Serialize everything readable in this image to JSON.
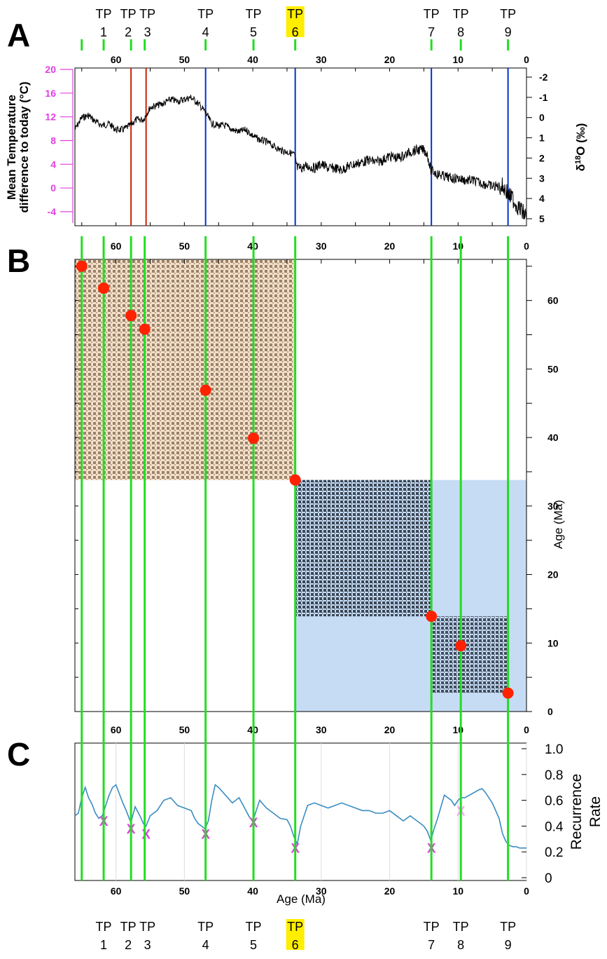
{
  "panels": {
    "a": "A",
    "b": "B",
    "c": "C"
  },
  "tipping_points": [
    {
      "tp": "TP",
      "num": "1",
      "age": 61.8,
      "highlight": false
    },
    {
      "tp": "TP",
      "num": "2",
      "age": 57.8,
      "highlight": false
    },
    {
      "tp": "TP",
      "num": "3",
      "age": 55.8,
      "highlight": false
    },
    {
      "tp": "TP",
      "num": "4",
      "age": 46.9,
      "highlight": false
    },
    {
      "tp": "TP",
      "num": "5",
      "age": 39.9,
      "highlight": false
    },
    {
      "tp": "TP",
      "num": "6",
      "age": 33.8,
      "highlight": true
    },
    {
      "tp": "TP",
      "num": "7",
      "age": 13.9,
      "highlight": false
    },
    {
      "tp": "TP",
      "num": "8",
      "age": 9.6,
      "highlight": false
    },
    {
      "tp": "TP",
      "num": "9",
      "age": 2.7,
      "highlight": false
    }
  ],
  "extra_green_line_age": 65,
  "colors": {
    "green": "#22dd22",
    "red_line": "#cc2200",
    "blue_line": "#0033cc",
    "magenta": "#e040e0",
    "highlight": "#ffee00",
    "orange_block": "#f6dfc5",
    "blue_block": "#c6dcf4",
    "dot": "#ff2200",
    "rr_line": "#3a8cc2"
  },
  "chart_data": [
    {
      "panel": "A",
      "type": "line",
      "x_ticks": [
        "60",
        "50",
        "40",
        "30",
        "20",
        "10",
        "0"
      ],
      "xlim": [
        66,
        0
      ],
      "left_axis": {
        "label_line1": "Mean Temperature",
        "label_line2": "difference to today (°C)",
        "ticks": [
          "20",
          "16",
          "12",
          "8",
          "4",
          "0",
          "-4"
        ],
        "range": [
          20,
          -6
        ]
      },
      "right_axis": {
        "label_base": "δ",
        "label_sup": "18",
        "label_rest": "O (‰)",
        "ticks": [
          "-2",
          "-1",
          "0",
          "1",
          "2",
          "3",
          "4",
          "5"
        ],
        "range": [
          -2.6,
          5.3
        ],
        "reversed": true
      },
      "red_lines_age": [
        57.8,
        55.6
      ],
      "blue_lines_age": [
        46.9,
        33.8,
        13.9,
        2.7
      ],
      "d18O_series": {
        "x": [
          66,
          65,
          64,
          63,
          62,
          61,
          60,
          59,
          58,
          57,
          56,
          55,
          54,
          53,
          52,
          51,
          50,
          49,
          48,
          47,
          46,
          45,
          44,
          43,
          42,
          41,
          40,
          39,
          38,
          37,
          36,
          35,
          34,
          33.5,
          33,
          32,
          31,
          30,
          29,
          28,
          27,
          26,
          25,
          24,
          23,
          22,
          21,
          20,
          19,
          18,
          17,
          16,
          15,
          14.5,
          14,
          13.5,
          13,
          12,
          11,
          10,
          9,
          8,
          7,
          6,
          5,
          4,
          3.5,
          3,
          2.5,
          2,
          1.5,
          1,
          0.5,
          0
        ],
        "y": [
          0.6,
          0.0,
          -0.1,
          0.2,
          0.4,
          0.3,
          0.6,
          0.6,
          0.4,
          0.1,
          0.1,
          -0.5,
          -0.6,
          -0.7,
          -0.9,
          -0.8,
          -0.9,
          -1.0,
          -0.7,
          -0.3,
          0.3,
          0.4,
          0.4,
          0.6,
          0.7,
          0.6,
          0.9,
          1.1,
          1.2,
          1.4,
          1.6,
          1.7,
          1.8,
          2.5,
          2.5,
          2.4,
          2.5,
          2.3,
          2.5,
          2.5,
          2.6,
          2.4,
          2.3,
          2.2,
          2.1,
          2.2,
          2.1,
          1.9,
          2.0,
          1.9,
          1.7,
          1.6,
          1.6,
          1.8,
          2.6,
          2.7,
          2.8,
          2.9,
          3.0,
          3.0,
          3.1,
          3.1,
          3.2,
          3.3,
          3.4,
          3.4,
          3.4,
          3.6,
          3.9,
          4.0,
          4.3,
          4.5,
          4.7,
          4.9
        ]
      }
    },
    {
      "panel": "B",
      "type": "heatmap",
      "x_ticks": [
        "60",
        "50",
        "40",
        "30",
        "20",
        "10",
        "0"
      ],
      "y_ticks": [
        "60",
        "50",
        "40",
        "30",
        "20",
        "10",
        "0"
      ],
      "ylabel": "Age  (Ma)",
      "extent": [
        66,
        0
      ],
      "blocks": [
        {
          "from": 66,
          "to": 33.8,
          "regime": "warm"
        },
        {
          "from": 33.8,
          "to": 0,
          "regime": "cold"
        }
      ],
      "dots_age": [
        65,
        61.8,
        57.8,
        55.8,
        46.9,
        39.9,
        33.8,
        13.9,
        9.6,
        2.7
      ]
    },
    {
      "panel": "C",
      "type": "line",
      "x_ticks": [
        "60",
        "50",
        "40",
        "30",
        "20",
        "10",
        "0"
      ],
      "xlabel": "Age  (Ma)",
      "ylabel_line1": "Recurrence",
      "ylabel_line2": "Rate",
      "y_ticks": [
        "1.0",
        "0.8",
        "0.6",
        "0.4",
        "0.2",
        "0"
      ],
      "ylim": [
        0,
        1.0
      ],
      "xlim": [
        66,
        0
      ],
      "series": {
        "x": [
          66,
          65.5,
          65,
          64.5,
          64,
          63.5,
          63,
          62.5,
          62,
          61.5,
          61,
          60.5,
          60,
          59.5,
          59,
          58.5,
          58,
          57.8,
          57.2,
          56.5,
          56,
          55.6,
          55,
          54,
          53,
          52,
          51,
          50,
          49,
          48.5,
          48,
          47.5,
          47,
          46.5,
          46,
          45.5,
          45,
          44,
          43,
          42,
          41,
          40.5,
          40,
          39.5,
          39,
          38,
          37,
          36,
          35,
          34.5,
          34,
          33.5,
          33,
          32,
          31,
          30,
          29,
          28,
          27,
          26,
          25,
          24,
          23,
          22,
          21,
          20,
          19,
          18,
          17,
          16,
          15,
          14.5,
          14,
          13.5,
          13,
          12,
          11,
          10.5,
          10,
          9.6,
          9,
          8,
          7,
          6.5,
          6,
          5,
          4,
          3.5,
          3,
          2.5,
          2,
          1.5,
          1,
          0.5,
          0
        ],
        "y": [
          0.48,
          0.5,
          0.62,
          0.7,
          0.62,
          0.57,
          0.5,
          0.46,
          0.48,
          0.56,
          0.64,
          0.7,
          0.72,
          0.65,
          0.58,
          0.52,
          0.45,
          0.43,
          0.55,
          0.48,
          0.42,
          0.4,
          0.48,
          0.52,
          0.6,
          0.62,
          0.56,
          0.54,
          0.52,
          0.46,
          0.42,
          0.4,
          0.38,
          0.44,
          0.6,
          0.72,
          0.7,
          0.64,
          0.58,
          0.62,
          0.52,
          0.47,
          0.44,
          0.52,
          0.6,
          0.54,
          0.5,
          0.46,
          0.45,
          0.4,
          0.32,
          0.26,
          0.4,
          0.56,
          0.58,
          0.56,
          0.54,
          0.56,
          0.58,
          0.56,
          0.54,
          0.52,
          0.52,
          0.5,
          0.5,
          0.52,
          0.48,
          0.44,
          0.48,
          0.44,
          0.4,
          0.36,
          0.29,
          0.38,
          0.46,
          0.64,
          0.6,
          0.56,
          0.6,
          0.62,
          0.62,
          0.65,
          0.68,
          0.69,
          0.66,
          0.58,
          0.46,
          0.34,
          0.28,
          0.25,
          0.24,
          0.24,
          0.23,
          0.23,
          0.23
        ]
      },
      "x_markers": [
        {
          "label": "X",
          "age": 61.8,
          "rr": 0.44,
          "faded": false
        },
        {
          "label": "X",
          "age": 57.8,
          "rr": 0.38,
          "faded": false
        },
        {
          "label": "X",
          "age": 55.6,
          "rr": 0.34,
          "faded": false
        },
        {
          "label": "X",
          "age": 46.9,
          "rr": 0.34,
          "faded": false
        },
        {
          "label": "X",
          "age": 39.9,
          "rr": 0.43,
          "faded": false
        },
        {
          "label": "X",
          "age": 33.8,
          "rr": 0.23,
          "faded": false
        },
        {
          "label": "X",
          "age": 13.9,
          "rr": 0.23,
          "faded": false
        },
        {
          "label": "X",
          "age": 9.6,
          "rr": 0.52,
          "faded": true
        }
      ]
    }
  ]
}
